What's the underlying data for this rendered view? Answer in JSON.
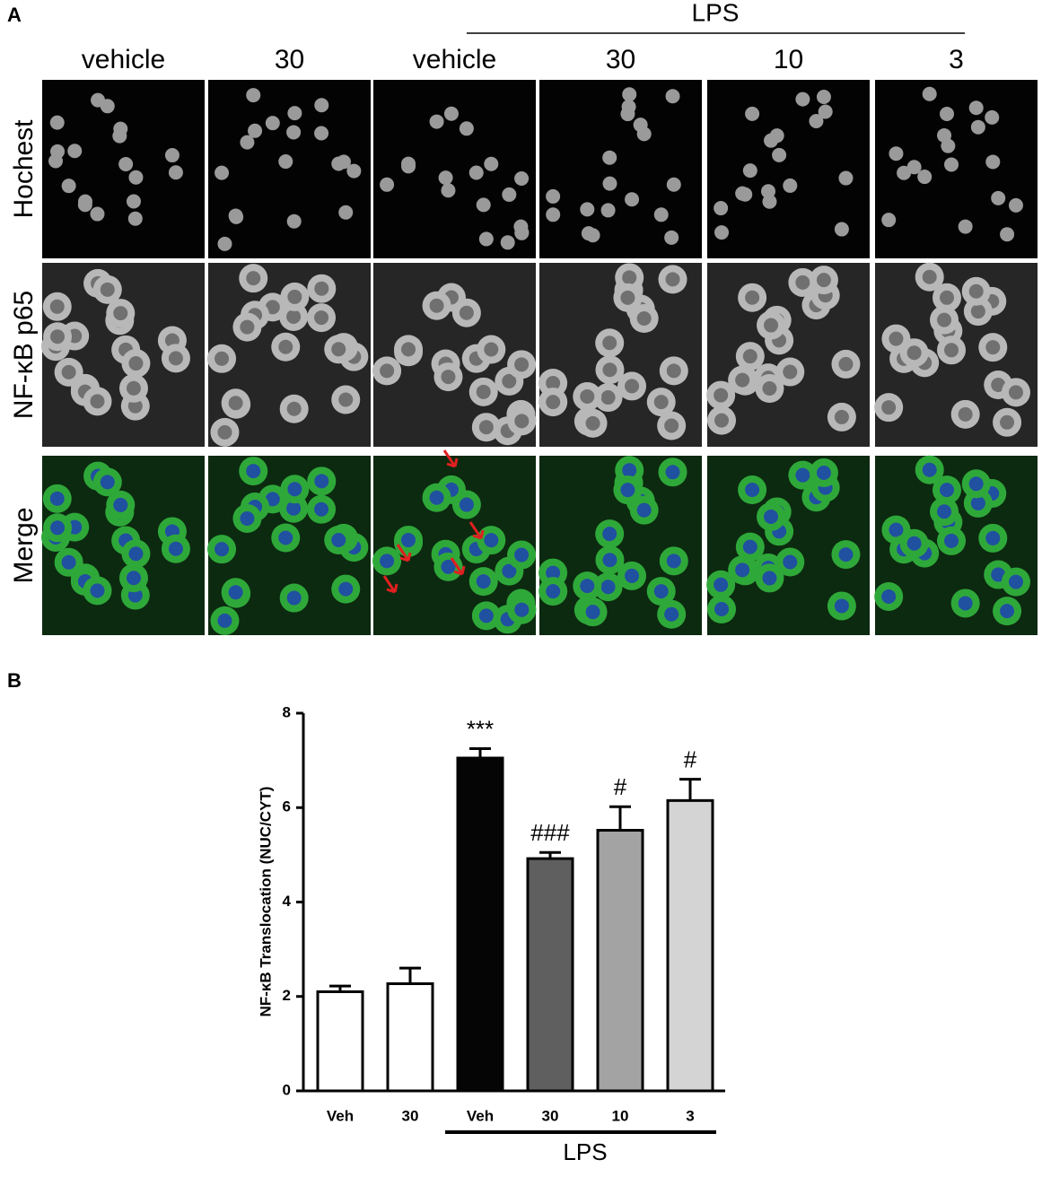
{
  "panel_a": {
    "label": "A",
    "group_label": "LPS",
    "columns": [
      "vehicle",
      "30",
      "vehicle",
      "30",
      "10",
      "3"
    ],
    "rows": [
      "Hochest",
      "NF-κB p65",
      "Merge"
    ]
  },
  "chart_data": {
    "type": "bar",
    "panel_label": "B",
    "y_label": "NF-κB Translocation (NUC/CYT)",
    "categories": [
      "Veh",
      "30",
      "Veh",
      "30",
      "10",
      "3"
    ],
    "values": [
      2.1,
      2.27,
      7.05,
      4.92,
      5.52,
      6.15
    ],
    "errors": [
      0.12,
      0.33,
      0.2,
      0.13,
      0.5,
      0.45
    ],
    "colors": [
      "#ffffff",
      "#ffffff",
      "#050505",
      "#5f5f5f",
      "#a3a3a3",
      "#d4d4d4"
    ],
    "annotations": [
      null,
      null,
      "***",
      "###",
      "#",
      "#"
    ],
    "group_label": "LPS",
    "ylim": [
      0,
      8
    ],
    "yticks": [
      0,
      2,
      4,
      6,
      8
    ]
  }
}
